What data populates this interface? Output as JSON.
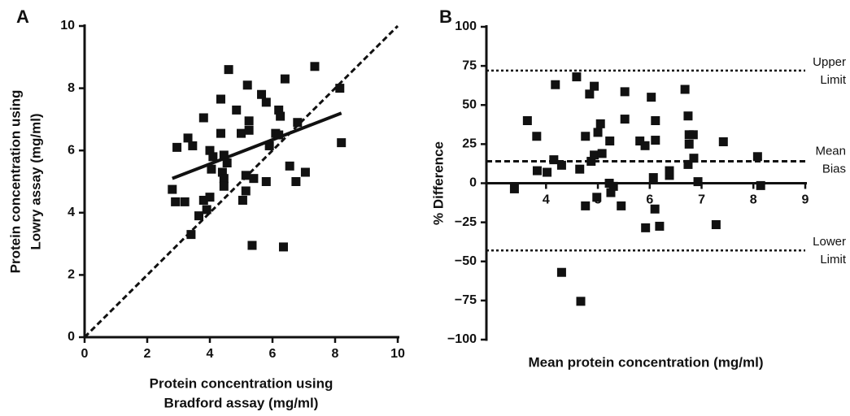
{
  "chart_data": [
    {
      "type": "scatter",
      "panel": "A",
      "xlabel": [
        "Protein concentration using",
        "Bradford assay (mg/ml)"
      ],
      "ylabel": [
        "Protein concentration using",
        "Lowry assay (mg/ml)"
      ],
      "xlim": [
        0,
        10
      ],
      "xticks": [
        0,
        2,
        4,
        6,
        8,
        10
      ],
      "ylim": [
        0,
        10
      ],
      "yticks": [
        0,
        2,
        4,
        6,
        8,
        10
      ],
      "color": "#111111",
      "x": [
        2.8,
        2.95,
        2.9,
        3.2,
        3.3,
        3.45,
        3.4,
        3.65,
        3.8,
        3.8,
        3.9,
        4.0,
        4.0,
        4.05,
        4.1,
        4.35,
        4.35,
        4.4,
        4.45,
        4.45,
        4.45,
        4.55,
        4.6,
        4.85,
        5.0,
        5.05,
        5.15,
        5.15,
        5.2,
        5.25,
        5.25,
        5.35,
        5.4,
        5.65,
        5.8,
        5.8,
        5.9,
        6.1,
        6.2,
        6.25,
        6.4,
        6.35,
        6.2,
        6.55,
        6.75,
        6.8,
        7.05,
        7.35,
        8.15,
        8.2
      ],
      "values": [
        4.75,
        6.1,
        4.35,
        4.35,
        6.4,
        6.15,
        3.3,
        3.9,
        4.4,
        7.05,
        4.1,
        4.5,
        6.0,
        5.4,
        5.8,
        7.65,
        6.55,
        5.3,
        5.1,
        4.85,
        5.85,
        5.6,
        8.6,
        7.3,
        6.55,
        4.4,
        4.7,
        5.2,
        8.1,
        6.95,
        6.65,
        2.95,
        5.1,
        7.8,
        5.0,
        7.55,
        6.15,
        6.55,
        7.3,
        7.1,
        8.3,
        2.9,
        6.5,
        5.5,
        5.0,
        6.9,
        5.3,
        8.7,
        8.0,
        6.25
      ],
      "lines": [
        {
          "x": [
            2.8,
            8.2
          ],
          "values": [
            5.1,
            7.2
          ],
          "style": "solid"
        },
        {
          "x": [
            0,
            10
          ],
          "values": [
            0,
            10
          ],
          "style": "dashed"
        }
      ]
    },
    {
      "type": "scatter",
      "panel": "B",
      "xlabel": [
        "Mean protein concentration (mg/ml)"
      ],
      "ylabel": [
        "% Difference"
      ],
      "xlim": [
        2.85,
        9
      ],
      "xticks": [
        4,
        5,
        6,
        7,
        8,
        9
      ],
      "ylim": [
        -100,
        100
      ],
      "yticks": [
        100,
        75,
        50,
        25,
        0,
        {
          "value": -25,
          "label": "−25"
        },
        {
          "value": -50,
          "label": "−50"
        },
        {
          "value": -75,
          "label": "−75"
        },
        {
          "value": -100,
          "label": "−100"
        }
      ],
      "color": "#111111",
      "x": [
        3.39,
        3.64,
        3.82,
        3.83,
        4.02,
        4.15,
        4.18,
        4.3,
        4.3,
        4.59,
        4.67,
        4.65,
        4.76,
        4.76,
        4.84,
        4.87,
        4.93,
        4.93,
        4.98,
        5.0,
        5.05,
        5.08,
        5.22,
        5.23,
        5.25,
        5.3,
        5.45,
        5.52,
        5.52,
        5.81,
        5.91,
        5.92,
        6.03,
        6.1,
        6.11,
        6.11,
        6.19,
        6.07,
        6.38,
        6.38,
        6.68,
        6.74,
        6.76,
        6.76,
        6.74,
        6.84,
        6.85,
        6.93,
        7.28,
        7.42,
        8.08,
        8.14
      ],
      "values": [
        -3.6,
        40,
        30,
        8,
        7,
        15,
        63,
        -57,
        11.5,
        68,
        -75.5,
        9,
        30,
        -14.5,
        57,
        14,
        62,
        18,
        -9,
        32.5,
        38,
        19,
        0,
        27,
        -6,
        -2,
        -14.5,
        41,
        58.5,
        27,
        24,
        -28.5,
        55,
        -16.5,
        40,
        27.5,
        -27.5,
        3.6,
        5,
        8,
        60,
        43,
        31,
        25,
        12,
        31,
        16,
        1,
        -26.5,
        26.5,
        17,
        -1.5
      ],
      "reference_lines": [
        {
          "value": 72,
          "label": [
            "Upper",
            "Limit"
          ],
          "style": "dotted"
        },
        {
          "value": 14,
          "label": [
            "Mean",
            "Bias"
          ],
          "style": "dashed"
        },
        {
          "value": -43,
          "label": [
            "Lower",
            "Limit"
          ],
          "style": "dotted"
        }
      ]
    }
  ]
}
